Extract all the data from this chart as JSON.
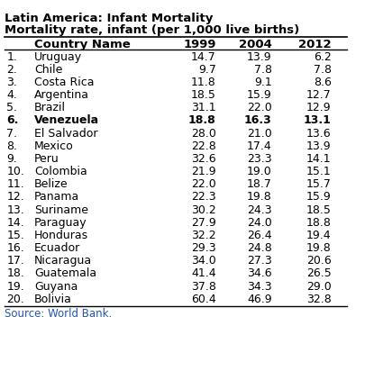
{
  "title_line1": "Latin America: Infant Mortality",
  "title_line2": "Mortality rate, infant (per 1,000 live births)",
  "header": [
    "Country Name",
    "1999",
    "2004",
    "2012"
  ],
  "rows": [
    {
      "num": "1.",
      "name": "Uruguay",
      "v1999": "14.7",
      "v2004": "13.9",
      "v2012": "6.2",
      "bold": false
    },
    {
      "num": "2.",
      "name": "Chile",
      "v1999": "9.7",
      "v2004": "7.8",
      "v2012": "7.8",
      "bold": false
    },
    {
      "num": "3.",
      "name": "Costa Rica",
      "v1999": "11.8",
      "v2004": "9.1",
      "v2012": "8.6",
      "bold": false
    },
    {
      "num": "4.",
      "name": "Argentina",
      "v1999": "18.5",
      "v2004": "15.9",
      "v2012": "12.7",
      "bold": false
    },
    {
      "num": "5.",
      "name": "Brazil",
      "v1999": "31.1",
      "v2004": "22.0",
      "v2012": "12.9",
      "bold": false
    },
    {
      "num": "6.",
      "name": "Venezuela",
      "v1999": "18.8",
      "v2004": "16.3",
      "v2012": "13.1",
      "bold": true
    },
    {
      "num": "7.",
      "name": "El Salvador",
      "v1999": "28.0",
      "v2004": "21.0",
      "v2012": "13.6",
      "bold": false
    },
    {
      "num": "8.",
      "name": "Mexico",
      "v1999": "22.8",
      "v2004": "17.4",
      "v2012": "13.9",
      "bold": false
    },
    {
      "num": "9.",
      "name": "Peru",
      "v1999": "32.6",
      "v2004": "23.3",
      "v2012": "14.1",
      "bold": false
    },
    {
      "num": "10.",
      "name": "Colombia",
      "v1999": "21.9",
      "v2004": "19.0",
      "v2012": "15.1",
      "bold": false
    },
    {
      "num": "11.",
      "name": "Belize",
      "v1999": "22.0",
      "v2004": "18.7",
      "v2012": "15.7",
      "bold": false
    },
    {
      "num": "12.",
      "name": "Panama",
      "v1999": "22.3",
      "v2004": "19.8",
      "v2012": "15.9",
      "bold": false
    },
    {
      "num": "13.",
      "name": "Suriname",
      "v1999": "30.2",
      "v2004": "24.3",
      "v2012": "18.5",
      "bold": false
    },
    {
      "num": "14.",
      "name": "Paraguay",
      "v1999": "27.9",
      "v2004": "24.0",
      "v2012": "18.8",
      "bold": false
    },
    {
      "num": "15.",
      "name": "Honduras",
      "v1999": "32.2",
      "v2004": "26.4",
      "v2012": "19.4",
      "bold": false
    },
    {
      "num": "16.",
      "name": "Ecuador",
      "v1999": "29.3",
      "v2004": "24.8",
      "v2012": "19.8",
      "bold": false
    },
    {
      "num": "17.",
      "name": "Nicaragua",
      "v1999": "34.0",
      "v2004": "27.3",
      "v2012": "20.6",
      "bold": false
    },
    {
      "num": "18.",
      "name": "Guatemala",
      "v1999": "41.4",
      "v2004": "34.6",
      "v2012": "26.5",
      "bold": false
    },
    {
      "num": "19.",
      "name": "Guyana",
      "v1999": "37.8",
      "v2004": "34.3",
      "v2012": "29.0",
      "bold": false
    },
    {
      "num": "20.",
      "name": "Bolivia",
      "v1999": "60.4",
      "v2004": "46.9",
      "v2012": "32.8",
      "bold": false
    }
  ],
  "source": "Source: World Bank.",
  "bg_color": "#ffffff",
  "title_fontsize": 9.5,
  "header_fontsize": 9.5,
  "data_fontsize": 9.0,
  "source_fontsize": 8.5
}
